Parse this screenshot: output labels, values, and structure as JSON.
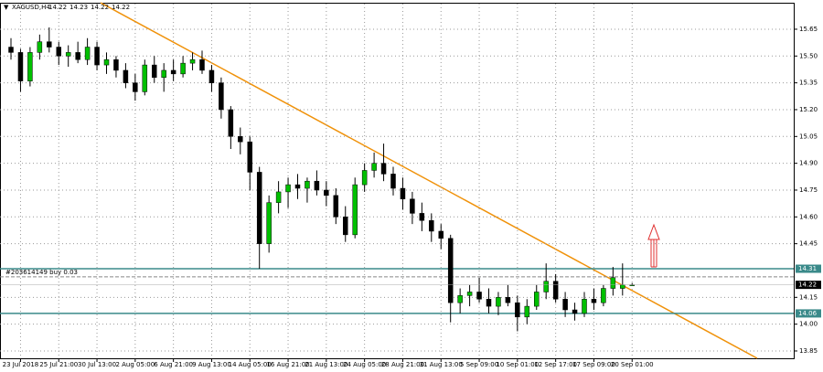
{
  "chart_data": {
    "type": "candlestick",
    "symbol": "XAGUSD,H4",
    "categories": [
      null,
      "23 Jul 2018",
      null,
      null,
      null,
      "25 Jul 21:00",
      null,
      null,
      null,
      "30 Jul 13:00",
      null,
      null,
      null,
      "2 Aug 05:00",
      null,
      null,
      null,
      "6 Aug 21:00",
      null,
      null,
      null,
      "9 Aug 13:00",
      null,
      null,
      null,
      "14 Aug 05:00",
      null,
      null,
      null,
      "16 Aug 21:00",
      null,
      null,
      null,
      "21 Aug 13:00",
      null,
      null,
      null,
      "24 Aug 05:00",
      null,
      null,
      null,
      "28 Aug 21:00",
      null,
      null,
      null,
      "31 Aug 13:00",
      null,
      null,
      null,
      "5 Sep 09:00",
      null,
      null,
      null,
      "10 Sep 01:00",
      null,
      null,
      null,
      "12 Sep 17:00",
      null,
      null,
      null,
      "17 Sep 09:00",
      null,
      null,
      null,
      "20 Sep 01:00"
    ],
    "ohlc": [
      [
        15.55,
        15.6,
        15.48,
        15.52
      ],
      [
        15.52,
        15.54,
        15.3,
        15.36
      ],
      [
        15.36,
        15.55,
        15.33,
        15.52
      ],
      [
        15.52,
        15.62,
        15.48,
        15.58
      ],
      [
        15.58,
        15.66,
        15.52,
        15.55
      ],
      [
        15.55,
        15.58,
        15.45,
        15.5
      ],
      [
        15.5,
        15.56,
        15.44,
        15.52
      ],
      [
        15.52,
        15.58,
        15.46,
        15.48
      ],
      [
        15.48,
        15.6,
        15.45,
        15.55
      ],
      [
        15.55,
        15.58,
        15.42,
        15.45
      ],
      [
        15.45,
        15.52,
        15.4,
        15.48
      ],
      [
        15.48,
        15.5,
        15.38,
        15.42
      ],
      [
        15.42,
        15.46,
        15.32,
        15.35
      ],
      [
        15.35,
        15.4,
        15.25,
        15.3
      ],
      [
        15.3,
        15.48,
        15.28,
        15.45
      ],
      [
        15.45,
        15.5,
        15.35,
        15.38
      ],
      [
        15.38,
        15.46,
        15.3,
        15.42
      ],
      [
        15.42,
        15.48,
        15.36,
        15.4
      ],
      [
        15.4,
        15.5,
        15.38,
        15.46
      ],
      [
        15.46,
        15.52,
        15.42,
        15.48
      ],
      [
        15.48,
        15.53,
        15.4,
        15.42
      ],
      [
        15.42,
        15.45,
        15.3,
        15.35
      ],
      [
        15.35,
        15.38,
        15.15,
        15.2
      ],
      [
        15.2,
        15.22,
        14.98,
        15.05
      ],
      [
        15.05,
        15.1,
        14.95,
        15.02
      ],
      [
        15.02,
        15.05,
        14.75,
        14.85
      ],
      [
        14.85,
        14.88,
        14.31,
        14.45
      ],
      [
        14.45,
        14.72,
        14.4,
        14.68
      ],
      [
        14.68,
        14.8,
        14.62,
        14.74
      ],
      [
        14.74,
        14.82,
        14.65,
        14.78
      ],
      [
        14.78,
        14.84,
        14.7,
        14.76
      ],
      [
        14.76,
        14.82,
        14.68,
        14.8
      ],
      [
        14.8,
        14.86,
        14.72,
        14.75
      ],
      [
        14.75,
        14.8,
        14.66,
        14.72
      ],
      [
        14.72,
        14.76,
        14.56,
        14.6
      ],
      [
        14.6,
        14.66,
        14.46,
        14.5
      ],
      [
        14.5,
        14.82,
        14.48,
        14.78
      ],
      [
        14.78,
        14.9,
        14.74,
        14.86
      ],
      [
        14.86,
        14.96,
        14.82,
        14.9
      ],
      [
        14.9,
        15.01,
        14.8,
        14.84
      ],
      [
        14.84,
        14.88,
        14.72,
        14.76
      ],
      [
        14.76,
        14.82,
        14.64,
        14.7
      ],
      [
        14.7,
        14.74,
        14.56,
        14.62
      ],
      [
        14.62,
        14.68,
        14.52,
        14.58
      ],
      [
        14.58,
        14.62,
        14.46,
        14.52
      ],
      [
        14.52,
        14.56,
        14.42,
        14.48
      ],
      [
        14.48,
        14.5,
        14.01,
        14.12
      ],
      [
        14.12,
        14.2,
        14.06,
        14.16
      ],
      [
        14.16,
        14.22,
        14.1,
        14.18
      ],
      [
        14.18,
        14.26,
        14.12,
        14.14
      ],
      [
        14.14,
        14.2,
        14.06,
        14.1
      ],
      [
        14.1,
        14.18,
        14.05,
        14.15
      ],
      [
        14.15,
        14.22,
        14.1,
        14.12
      ],
      [
        14.12,
        14.16,
        13.96,
        14.04
      ],
      [
        14.04,
        14.14,
        14.0,
        14.1
      ],
      [
        14.1,
        14.22,
        14.08,
        14.18
      ],
      [
        14.18,
        14.34,
        14.14,
        14.24
      ],
      [
        14.24,
        14.28,
        14.12,
        14.14
      ],
      [
        14.14,
        14.18,
        14.04,
        14.08
      ],
      [
        14.08,
        14.12,
        14.02,
        14.06
      ],
      [
        14.06,
        14.18,
        14.04,
        14.14
      ],
      [
        14.14,
        14.2,
        14.08,
        14.12
      ],
      [
        14.12,
        14.22,
        14.1,
        14.2
      ],
      [
        14.2,
        14.32,
        14.16,
        14.26
      ],
      [
        14.2,
        14.34,
        14.16,
        14.22
      ],
      [
        14.22,
        14.23,
        14.22,
        14.22
      ]
    ],
    "up_color": "#00c000",
    "down_color": "#000000",
    "levels": [
      14.31,
      14.06
    ],
    "level_color": "#3a8a8a",
    "order": {
      "label": "#203614149 buy 0.03",
      "price": 14.265
    },
    "ylim": [
      13.809,
      15.793
    ],
    "yticks": [
      15.65,
      {
        "value": 15.5,
        "label": "15.50"
      },
      15.35,
      {
        "value": 15.2,
        "label": "15.20"
      },
      15.05,
      {
        "value": 14.9,
        "label": "14.90"
      },
      14.75,
      {
        "value": 14.6,
        "label": "14.60"
      },
      14.45,
      14.15,
      {
        "value": 14.0,
        "label": "14.00"
      },
      13.85
    ],
    "grid": true
  }
}
